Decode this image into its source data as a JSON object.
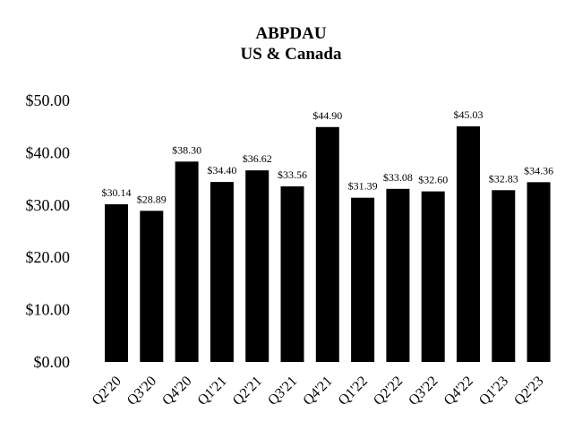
{
  "chart_data": {
    "type": "bar",
    "title": "ABPDAU",
    "subtitle": "US & Canada",
    "xlabel": "",
    "ylabel": "",
    "categories": [
      "Q2'20",
      "Q3'20",
      "Q4'20",
      "Q1'21",
      "Q2'21",
      "Q3'21",
      "Q4'21",
      "Q1'22",
      "Q2'22",
      "Q3'22",
      "Q4'22",
      "Q1'23",
      "Q2'23"
    ],
    "values": [
      30.14,
      28.89,
      38.3,
      34.4,
      36.62,
      33.56,
      44.9,
      31.39,
      33.08,
      32.6,
      45.03,
      32.83,
      34.36
    ],
    "data_labels": [
      "$30.14",
      "$28.89",
      "$38.30",
      "$34.40",
      "$36.62",
      "$33.56",
      "$44.90",
      "$31.39",
      "$33.08",
      "$32.60",
      "$45.03",
      "$32.83",
      "$34.36"
    ],
    "ylim": [
      0,
      50
    ],
    "yticks": [
      0,
      10,
      20,
      30,
      40,
      50
    ],
    "ytick_labels": [
      "$0.00",
      "$10.00",
      "$20.00",
      "$30.00",
      "$40.00",
      "$50.00"
    ],
    "grid": false,
    "legend": "none",
    "bar_color": "#000000"
  }
}
